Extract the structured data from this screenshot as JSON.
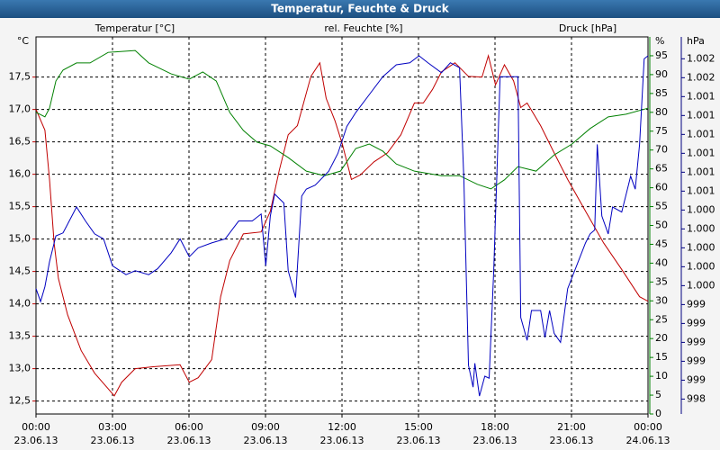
{
  "chart_data": {
    "type": "line",
    "title": "Temperatur, Feuchte & Druck",
    "xlim": [
      0,
      24
    ],
    "xticks": [
      {
        "value": 0,
        "label": "00:00"
      },
      {
        "value": 3,
        "label": "03:00"
      },
      {
        "value": 6,
        "label": "06:00"
      },
      {
        "value": 9,
        "label": "09:00"
      },
      {
        "value": 12,
        "label": "12:00"
      },
      {
        "value": 15,
        "label": "15:00"
      },
      {
        "value": 18,
        "label": "18:00"
      },
      {
        "value": 21,
        "label": "21:00"
      },
      {
        "value": 24,
        "label": "00:00"
      }
    ],
    "xtick_dates": [
      "23.06.13",
      "23.06.13",
      "23.06.13",
      "23.06.13",
      "23.06.13",
      "23.06.13",
      "23.06.13",
      "23.06.13",
      "24.06.13"
    ],
    "y_unit": "°C",
    "ylim": [
      12.3,
      18.12
    ],
    "yticks": [
      {
        "value": 12.5,
        "label": "12,5"
      },
      {
        "value": 13,
        "label": "13,0"
      },
      {
        "value": 13.5,
        "label": "13,5"
      },
      {
        "value": 14,
        "label": "14,0"
      },
      {
        "value": 14.5,
        "label": "14,5"
      },
      {
        "value": 15,
        "label": "15,0"
      },
      {
        "value": 15.5,
        "label": "15,5"
      },
      {
        "value": 16,
        "label": "16,0"
      },
      {
        "value": 16.5,
        "label": "16,5"
      },
      {
        "value": 17,
        "label": "17,0"
      },
      {
        "value": 17.5,
        "label": "17,5"
      }
    ],
    "y2_unit": "%",
    "y2lim": [
      0,
      100
    ],
    "y2ticks": [
      0,
      5,
      10,
      15,
      20,
      25,
      30,
      35,
      40,
      45,
      50,
      55,
      60,
      65,
      70,
      75,
      80,
      85,
      90,
      95
    ],
    "y3_unit": "hPa",
    "y3lim": [
      998.28,
      1002.07
    ],
    "y3ticks": [
      {
        "value": 998.43,
        "label": "998"
      },
      {
        "value": 998.62,
        "label": "999"
      },
      {
        "value": 998.81,
        "label": "999"
      },
      {
        "value": 999.0,
        "label": "999"
      },
      {
        "value": 999.19,
        "label": "999"
      },
      {
        "value": 999.38,
        "label": "999"
      },
      {
        "value": 999.57,
        "label": "1.000"
      },
      {
        "value": 999.76,
        "label": "1.000"
      },
      {
        "value": 999.95,
        "label": "1.000"
      },
      {
        "value": 1000.14,
        "label": "1.000"
      },
      {
        "value": 1000.33,
        "label": "1.000"
      },
      {
        "value": 1000.52,
        "label": "1.001"
      },
      {
        "value": 1000.71,
        "label": "1.001"
      },
      {
        "value": 1000.9,
        "label": "1.001"
      },
      {
        "value": 1001.09,
        "label": "1.001"
      },
      {
        "value": 1001.28,
        "label": "1.001"
      },
      {
        "value": 1001.47,
        "label": "1.001"
      },
      {
        "value": 1001.66,
        "label": "1.002"
      },
      {
        "value": 1001.85,
        "label": "1.002"
      }
    ],
    "grid": true,
    "series": [
      {
        "name": "Temperatur [°C]",
        "color": "#c00000",
        "axis": "y",
        "x": [
          0,
          0.35,
          0.53,
          0.71,
          0.88,
          1.24,
          1.77,
          2.3,
          2.83,
          3.07,
          3.36,
          3.89,
          4.59,
          5.65,
          6.01,
          6.36,
          6.89,
          7.24,
          7.6,
          8.13,
          8.83,
          9.19,
          9.54,
          9.89,
          10.25,
          10.78,
          11.13,
          11.38,
          11.73,
          12.01,
          12.37,
          12.72,
          13.25,
          13.78,
          14.31,
          14.84,
          15.19,
          15.55,
          15.9,
          16.43,
          16.96,
          17.49,
          17.74,
          18.02,
          18.37,
          18.73,
          19.01,
          19.26,
          19.79,
          20.32,
          20.85,
          21.55,
          22.26,
          22.97,
          23.67,
          24
        ],
        "values": [
          17.0,
          16.68,
          15.92,
          14.94,
          14.39,
          13.83,
          13.28,
          12.93,
          12.69,
          12.58,
          12.79,
          13.0,
          13.03,
          13.06,
          12.79,
          12.86,
          13.14,
          14.11,
          14.67,
          15.08,
          15.11,
          15.43,
          16.06,
          16.61,
          16.75,
          17.51,
          17.72,
          17.17,
          16.82,
          16.47,
          15.92,
          15.99,
          16.19,
          16.33,
          16.61,
          17.1,
          17.1,
          17.31,
          17.58,
          17.72,
          17.51,
          17.5,
          17.83,
          17.38,
          17.69,
          17.44,
          17.03,
          17.1,
          16.75,
          16.33,
          15.92,
          15.43,
          14.94,
          14.53,
          14.11,
          14.04
        ]
      },
      {
        "name": "rel. Feuchte [%]",
        "color": "#008000",
        "axis": "y2",
        "x": [
          0,
          0.35,
          0.53,
          0.78,
          1.06,
          1.59,
          2.12,
          2.83,
          3.89,
          4.42,
          5.3,
          6.01,
          6.54,
          7.07,
          7.6,
          8.13,
          8.66,
          9.19,
          9.89,
          10.6,
          11.31,
          11.94,
          12.54,
          13.07,
          13.6,
          14.13,
          14.84,
          15.9,
          16.61,
          17.31,
          17.84,
          18.37,
          18.9,
          19.61,
          20.32,
          21.02,
          21.73,
          22.44,
          23.14,
          24
        ],
        "values": [
          80,
          78.8,
          81.1,
          88.3,
          91.2,
          93.1,
          93.1,
          95.9,
          96.4,
          93.1,
          90.2,
          88.8,
          90.7,
          88.3,
          79.95,
          75.2,
          72.1,
          71.1,
          68.0,
          64.4,
          63.2,
          64.4,
          70.4,
          71.6,
          69.7,
          66.3,
          64.4,
          63.2,
          63.2,
          60.9,
          59.7,
          62.1,
          65.6,
          64.4,
          68.7,
          71.6,
          75.7,
          78.8,
          79.5,
          81.1
        ]
      },
      {
        "name": "Druck [hPa]",
        "color": "#0000c0",
        "axis": "y3",
        "x": [
          0,
          0.18,
          0.35,
          0.53,
          0.78,
          1.06,
          1.59,
          1.94,
          2.3,
          2.65,
          3.0,
          3.53,
          3.89,
          4.42,
          4.77,
          5.3,
          5.65,
          6.01,
          6.36,
          6.89,
          7.42,
          7.95,
          8.48,
          8.83,
          9.01,
          9.19,
          9.36,
          9.72,
          9.89,
          10.18,
          10.42,
          10.6,
          10.95,
          11.48,
          11.84,
          12.19,
          12.54,
          13.07,
          13.6,
          14.13,
          14.66,
          15.02,
          15.37,
          15.9,
          16.25,
          16.61,
          16.78,
          16.96,
          17.14,
          17.21,
          17.39,
          17.6,
          17.77,
          17.95,
          18.2,
          18.55,
          18.9,
          19.01,
          19.26,
          19.43,
          19.79,
          19.96,
          20.14,
          20.32,
          20.57,
          20.85,
          21.2,
          21.55,
          21.73,
          21.91,
          22.01,
          22.19,
          22.44,
          22.61,
          22.97,
          23.32,
          23.5,
          23.67,
          23.85,
          24
        ],
        "values": [
          999.54,
          999.41,
          999.56,
          999.81,
          1000.07,
          1000.1,
          1000.36,
          1000.22,
          1000.09,
          1000.04,
          999.77,
          999.68,
          999.72,
          999.68,
          999.74,
          999.9,
          1000.04,
          999.86,
          999.95,
          1000.0,
          1000.04,
          1000.22,
          1000.22,
          1000.29,
          999.77,
          1000.27,
          1000.49,
          1000.4,
          999.72,
          999.45,
          1000.47,
          1000.54,
          1000.58,
          1000.72,
          1000.9,
          1001.17,
          1001.31,
          1001.49,
          1001.67,
          1001.79,
          1001.81,
          1001.88,
          1001.81,
          1001.71,
          1001.81,
          1001.76,
          1000.63,
          998.77,
          998.55,
          998.79,
          998.46,
          998.66,
          998.64,
          999.72,
          1001.67,
          1001.67,
          1001.67,
          999.25,
          999.02,
          999.32,
          999.32,
          999.05,
          999.32,
          999.09,
          999.0,
          999.54,
          999.77,
          1000.0,
          1000.09,
          1000.13,
          1000.99,
          1000.27,
          1000.09,
          1000.36,
          1000.31,
          1000.67,
          1000.54,
          1000.99,
          1001.85,
          1001.88
        ]
      }
    ]
  }
}
